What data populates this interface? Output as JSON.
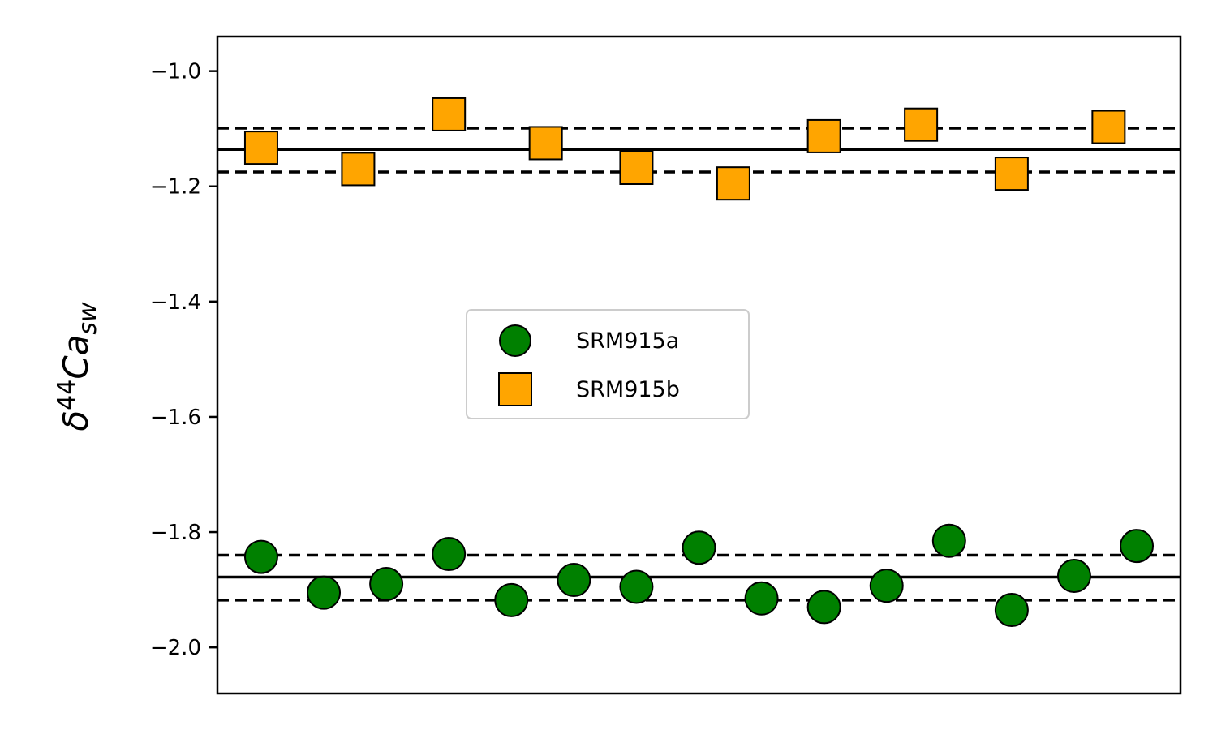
{
  "chart_data": {
    "type": "scatter",
    "xlabel": "",
    "ylabel": {
      "base": "δ",
      "sup": "44",
      "main": "Ca",
      "sub": "sw"
    },
    "ylim": [
      -2.08,
      -0.94
    ],
    "xlim": [
      0.3,
      15.7
    ],
    "x_ticks_visible": false,
    "yticks": [
      -2.0,
      -1.8,
      -1.6,
      -1.4,
      -1.2,
      -1.0
    ],
    "ytick_labels": [
      "−2.0",
      "−1.8",
      "−1.6",
      "−1.4",
      "−1.2",
      "−1.0"
    ],
    "grid": false,
    "legend_position": "center-left",
    "series": [
      {
        "name": "SRM915a",
        "marker": "circle",
        "color": "#008000",
        "edgecolor": "#000000",
        "x": [
          1,
          2,
          3,
          4,
          5,
          6,
          7,
          8,
          9,
          10,
          11,
          12,
          13,
          14,
          15
        ],
        "y": [
          -1.843,
          -1.905,
          -1.89,
          -1.838,
          -1.918,
          -1.883,
          -1.895,
          -1.827,
          -1.915,
          -1.93,
          -1.893,
          -1.815,
          -1.935,
          -1.876,
          -1.824
        ],
        "mean": -1.878,
        "band": [
          -1.918,
          -1.84
        ]
      },
      {
        "name": "SRM915b",
        "marker": "square",
        "color": "#ffa500",
        "edgecolor": "#000000",
        "x": [
          1,
          2.55,
          4,
          5.55,
          7,
          8.55,
          10,
          11.55,
          13,
          14.55
        ],
        "y": [
          -1.133,
          -1.17,
          -1.075,
          -1.125,
          -1.168,
          -1.195,
          -1.113,
          -1.093,
          -1.178,
          -1.097
        ],
        "mean": -1.136,
        "band": [
          -1.175,
          -1.099
        ]
      }
    ]
  }
}
